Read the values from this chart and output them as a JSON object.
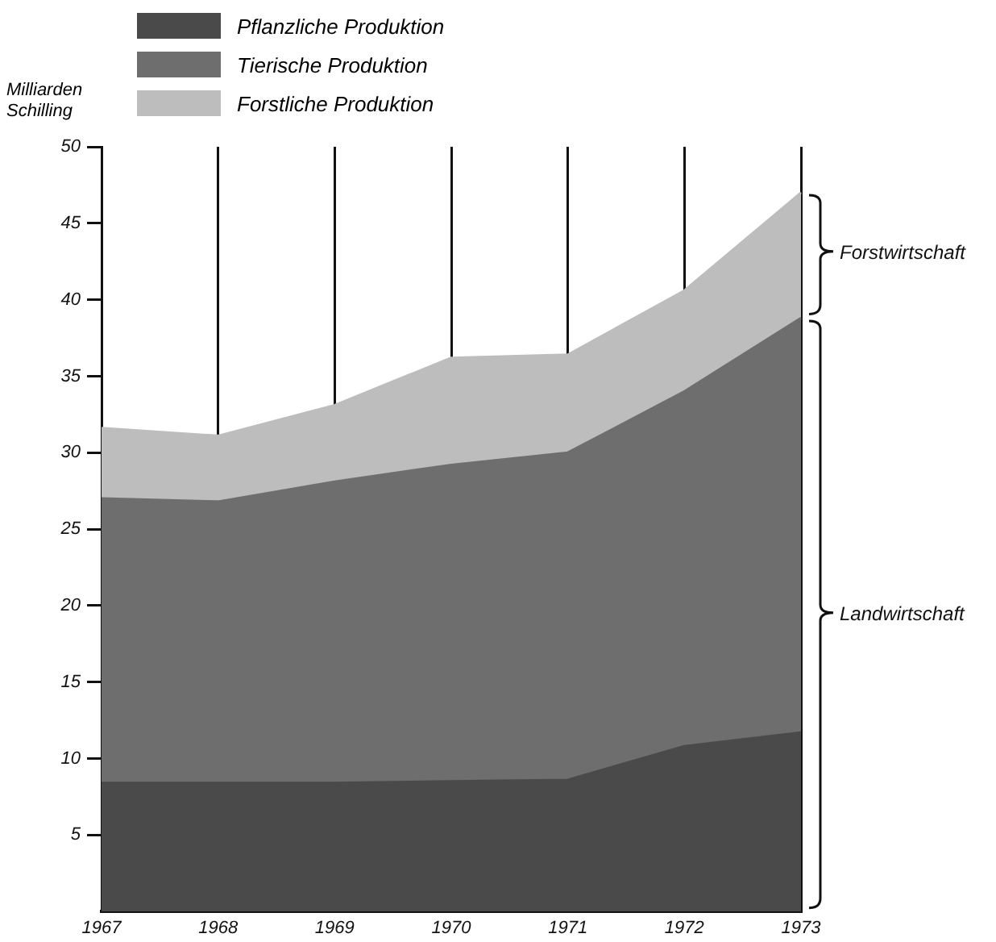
{
  "chart_data": {
    "type": "area",
    "stacked": true,
    "ylabel": "Milliarden Schilling",
    "categories": [
      "1967",
      "1968",
      "1969",
      "1970",
      "1971",
      "1972",
      "1973"
    ],
    "series": [
      {
        "name": "Pflanzliche Produktion",
        "color": "#4a4a4a",
        "values": [
          8.4,
          8.4,
          8.4,
          8.5,
          8.6,
          10.8,
          11.7
        ]
      },
      {
        "name": "Tierische Produktion",
        "color": "#6e6e6e",
        "values": [
          18.6,
          18.4,
          19.7,
          20.7,
          21.4,
          23.2,
          27.1
        ]
      },
      {
        "name": "Forstliche Produktion",
        "color": "#bdbdbd",
        "values": [
          4.6,
          4.3,
          5.0,
          7.0,
          6.4,
          6.6,
          8.2
        ]
      }
    ],
    "ylim": [
      0,
      50
    ],
    "yticks": [
      5,
      10,
      15,
      20,
      25,
      30,
      35,
      40,
      45,
      50
    ],
    "grid": "x",
    "legend": "top left",
    "marker": "none",
    "line_style": "solid",
    "annotations": [
      {
        "text": "Forstwirtschaft",
        "x": "1973",
        "y": 43
      },
      {
        "text": "Landwirtschaft",
        "x": "1973",
        "y": 19.4
      }
    ]
  }
}
